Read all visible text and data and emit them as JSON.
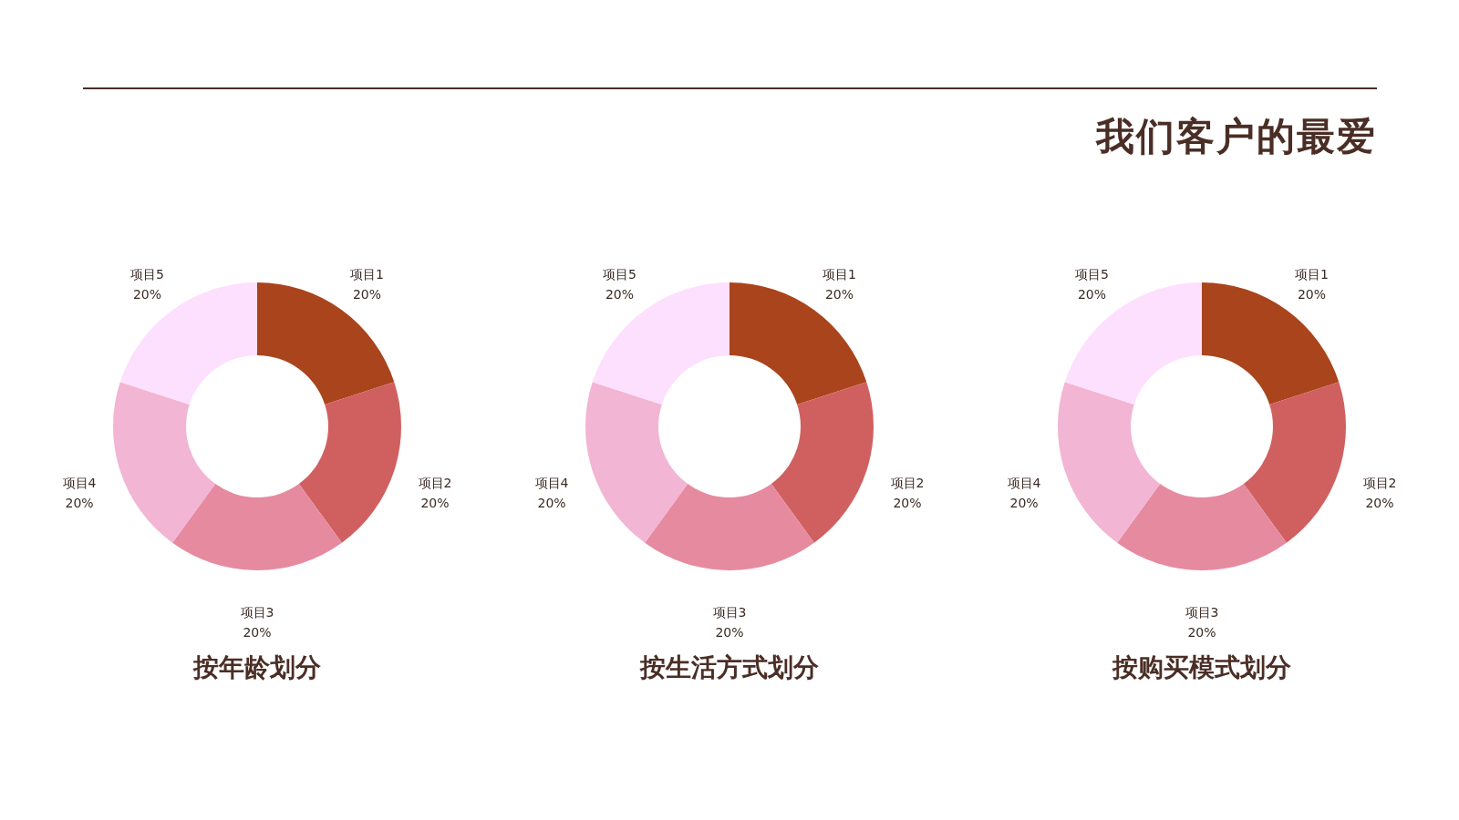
{
  "chart_data": [
    {
      "type": "other",
      "title": "我们客户的最爱"
    },
    {
      "type": "donut",
      "title": "按年龄划分",
      "categories": [
        "项目1",
        "项目2",
        "项目3",
        "项目4",
        "项目5"
      ],
      "values": [
        20,
        20,
        20,
        20,
        20
      ],
      "value_labels": [
        "20%",
        "20%",
        "20%",
        "20%",
        "20%"
      ],
      "colors": [
        "#a9441c",
        "#d06060",
        "#e68aa0",
        "#f2b5d4",
        "#fde0fd"
      ]
    },
    {
      "type": "donut",
      "title": "按生活方式划分",
      "categories": [
        "项目1",
        "项目2",
        "项目3",
        "项目4",
        "项目5"
      ],
      "values": [
        20,
        20,
        20,
        20,
        20
      ],
      "value_labels": [
        "20%",
        "20%",
        "20%",
        "20%",
        "20%"
      ],
      "colors": [
        "#a9441c",
        "#d06060",
        "#e68aa0",
        "#f2b5d4",
        "#fde0fd"
      ]
    },
    {
      "type": "donut",
      "title": "按购买模式划分",
      "categories": [
        "项目1",
        "项目2",
        "项目3",
        "项目4",
        "项目5"
      ],
      "values": [
        20,
        20,
        20,
        20,
        20
      ],
      "value_labels": [
        "20%",
        "20%",
        "20%",
        "20%",
        "20%"
      ],
      "colors": [
        "#a9441c",
        "#d06060",
        "#e68aa0",
        "#f2b5d4",
        "#fde0fd"
      ]
    }
  ]
}
